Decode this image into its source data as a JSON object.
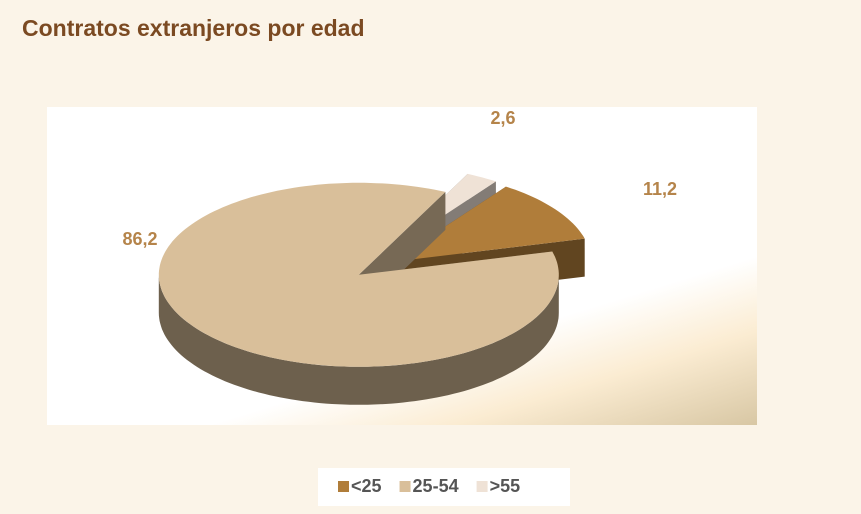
{
  "chart_data": {
    "type": "pie",
    "title": "Contratos extranjeros  por edad",
    "categories": [
      "<25",
      "25-54",
      ">55"
    ],
    "values": [
      11.2,
      86.2,
      2.6
    ],
    "value_labels": [
      "11,2",
      "86,2",
      "2,6"
    ],
    "colors": [
      "#b07d3a",
      "#d9bf9a",
      "#efe2d6"
    ],
    "legend": "bottom"
  }
}
